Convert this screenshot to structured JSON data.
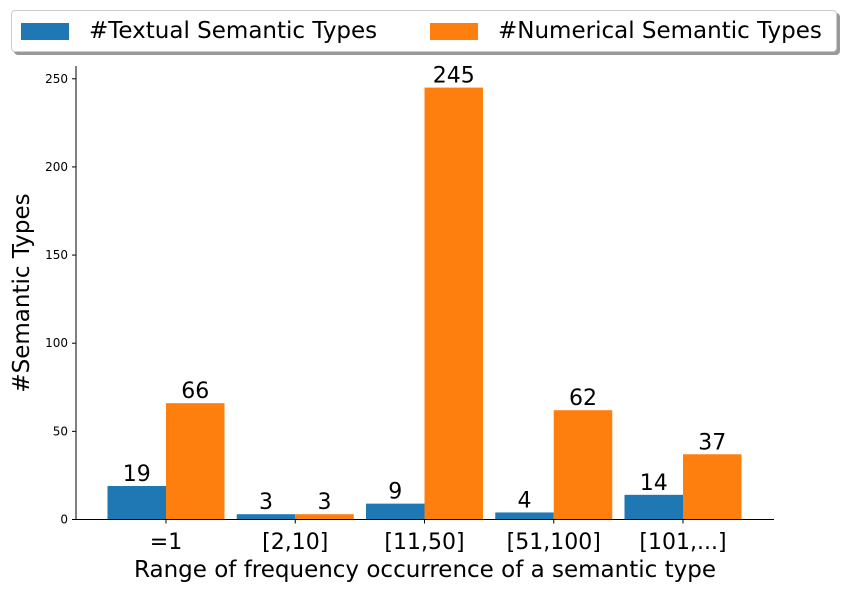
{
  "legend": {
    "textual_label": "#Textual Semantic Types",
    "numerical_label": "#Numerical Semantic Types"
  },
  "colors": {
    "textual": "#1f77b4",
    "numerical": "#ff7f0e"
  },
  "chart_data": {
    "type": "bar",
    "xlabel": "Range of frequency occurrence of a semantic type",
    "ylabel": "#Semantic Types",
    "categories": [
      "=1",
      "[2,10]",
      "[11,50]",
      "[51,100]",
      "[101,...]"
    ],
    "series": [
      {
        "name": "#Textual Semantic Types",
        "values": [
          19,
          3,
          9,
          4,
          14
        ]
      },
      {
        "name": "#Numerical Semantic Types",
        "values": [
          66,
          3,
          245,
          62,
          37
        ]
      }
    ],
    "yticks": [
      0,
      50,
      100,
      150,
      200,
      250
    ],
    "ylim": [
      0,
      257.25
    ],
    "grid": false,
    "legend_position": "top"
  }
}
